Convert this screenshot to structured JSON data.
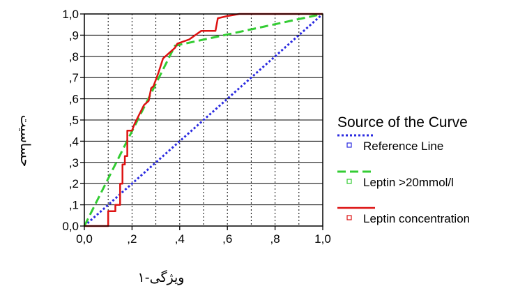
{
  "chart_data": {
    "type": "line",
    "title": "",
    "xlabel": "ویژگی-۱",
    "ylabel": "حساسیت",
    "xlim": [
      0,
      1
    ],
    "ylim": [
      0,
      1
    ],
    "grid": true,
    "legend_position": "right",
    "x_tick_labels": [
      "0,0",
      ",2",
      ",4",
      ",6",
      ",8",
      "1,0"
    ],
    "y_tick_labels": [
      "0,0",
      ",1",
      ",2",
      ",3",
      ",4",
      ",5",
      ",6",
      ",7",
      ",8",
      ",9",
      "1,0"
    ],
    "legend_title": "Source of the Curve",
    "series": [
      {
        "name": "Reference Line",
        "color": "#2a2ae0",
        "style": "dotted",
        "points": [
          [
            0,
            0
          ],
          [
            1,
            1
          ]
        ]
      },
      {
        "name": "Leptin >20mmol/l",
        "color": "#33cc33",
        "style": "dashed",
        "points": [
          [
            0,
            0
          ],
          [
            0.38,
            0.85
          ],
          [
            1,
            1
          ]
        ]
      },
      {
        "name": "Leptin concentration",
        "color": "#dd1111",
        "style": "solid",
        "points": [
          [
            0,
            0
          ],
          [
            0.1,
            0
          ],
          [
            0.1,
            0.07
          ],
          [
            0.13,
            0.07
          ],
          [
            0.13,
            0.1
          ],
          [
            0.15,
            0.1
          ],
          [
            0.15,
            0.2
          ],
          [
            0.16,
            0.2
          ],
          [
            0.16,
            0.29
          ],
          [
            0.17,
            0.29
          ],
          [
            0.17,
            0.33
          ],
          [
            0.18,
            0.33
          ],
          [
            0.18,
            0.45
          ],
          [
            0.2,
            0.45
          ],
          [
            0.21,
            0.48
          ],
          [
            0.25,
            0.57
          ],
          [
            0.27,
            0.59
          ],
          [
            0.28,
            0.65
          ],
          [
            0.29,
            0.66
          ],
          [
            0.31,
            0.72
          ],
          [
            0.33,
            0.79
          ],
          [
            0.36,
            0.82
          ],
          [
            0.38,
            0.84
          ],
          [
            0.39,
            0.86
          ],
          [
            0.44,
            0.88
          ],
          [
            0.49,
            0.92
          ],
          [
            0.55,
            0.92
          ],
          [
            0.56,
            0.98
          ],
          [
            0.6,
            0.99
          ],
          [
            0.65,
            1
          ],
          [
            1,
            1
          ]
        ]
      }
    ]
  }
}
